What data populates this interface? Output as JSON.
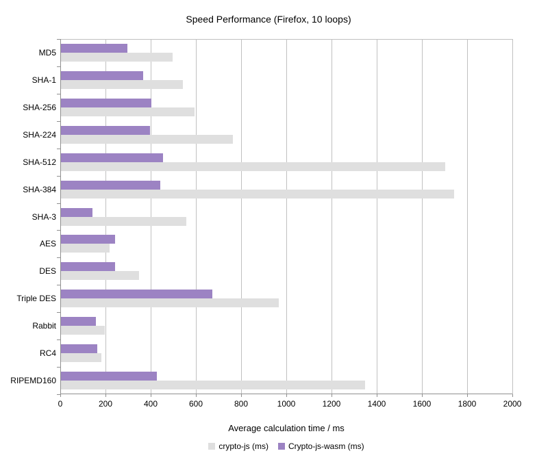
{
  "title": "Speed Performance (Firefox, 10 loops)",
  "chart_data": {
    "type": "bar",
    "orientation": "horizontal",
    "title": "Speed Performance (Firefox, 10 loops)",
    "xlabel": "Average calculation time / ms",
    "ylabel": "",
    "xlim": [
      0,
      2000
    ],
    "xticks": [
      0,
      200,
      400,
      600,
      800,
      1000,
      1200,
      1400,
      1600,
      1800,
      2000
    ],
    "grid": true,
    "legend_position": "bottom",
    "categories": [
      "MD5",
      "SHA-1",
      "SHA-256",
      "SHA-224",
      "SHA-512",
      "SHA-384",
      "SHA-3",
      "AES",
      "DES",
      "Triple DES",
      "Rabbit",
      "RC4",
      "RIPEMD160"
    ],
    "series": [
      {
        "name": "crypto-js (ms)",
        "color": "#dfdfdf",
        "values": [
          495,
          540,
          590,
          760,
          1700,
          1740,
          555,
          215,
          345,
          965,
          195,
          180,
          1345
        ]
      },
      {
        "name": "Crypto-js-wasm (ms)",
        "color": "#9c83c3",
        "values": [
          295,
          365,
          400,
          395,
          450,
          440,
          140,
          240,
          240,
          670,
          155,
          160,
          425
        ]
      }
    ]
  },
  "colors": {
    "background": "#ffffff",
    "gridline": "#c0c0c0",
    "axis": "#8f8f8f",
    "text": "#000000"
  }
}
